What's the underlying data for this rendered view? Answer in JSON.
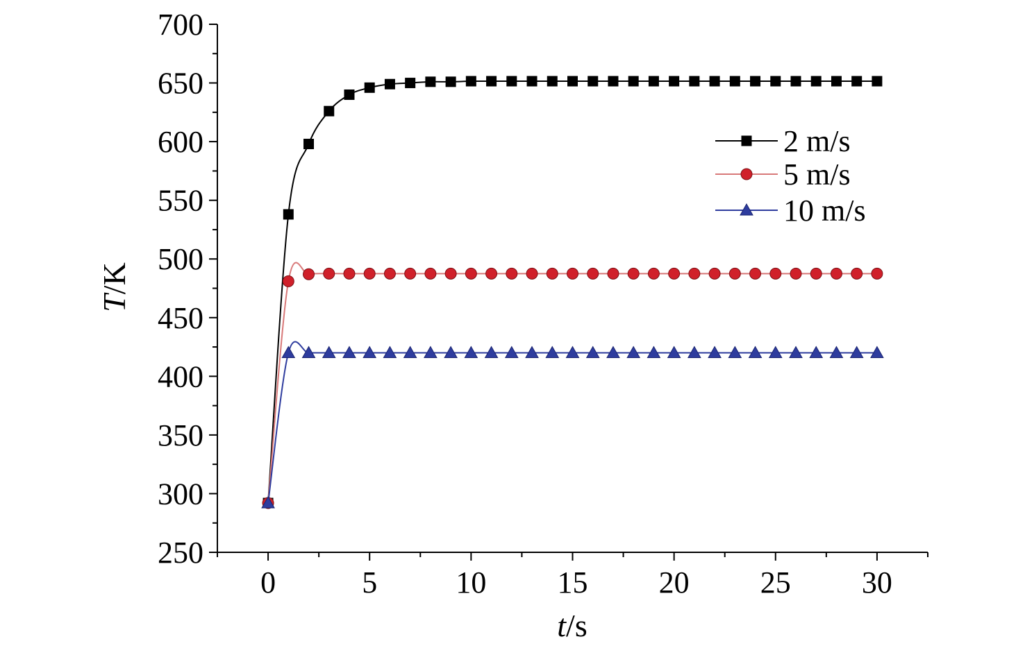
{
  "chart_data": {
    "type": "line",
    "title": "",
    "xlabel": {
      "var": "t",
      "unit": "/s"
    },
    "ylabel": {
      "var": "T",
      "unit": "/K"
    },
    "xlim": [
      -2.5,
      32.5
    ],
    "ylim": [
      250,
      700
    ],
    "xticks": [
      "0",
      "5",
      "10",
      "15",
      "20",
      "25",
      "30"
    ],
    "yticks": [
      "250",
      "300",
      "350",
      "400",
      "450",
      "500",
      "550",
      "600",
      "650",
      "700"
    ],
    "grid": false,
    "legend_position": "top-right",
    "x": [
      0,
      1,
      2,
      3,
      4,
      5,
      6,
      7,
      8,
      9,
      10,
      11,
      12,
      13,
      14,
      15,
      16,
      17,
      18,
      19,
      20,
      21,
      22,
      23,
      24,
      25,
      26,
      27,
      28,
      29,
      30
    ],
    "series": [
      {
        "name": "2 m/s",
        "marker": "square",
        "color": "#000000",
        "line_color": "#000000",
        "values": [
          292,
          538,
          598,
          626,
          640,
          646,
          649,
          650,
          651,
          651,
          651.5,
          651.5,
          651.5,
          651.5,
          651.5,
          651.5,
          651.5,
          651.5,
          651.5,
          651.5,
          651.5,
          651.5,
          651.5,
          651.5,
          651.5,
          651.5,
          651.5,
          651.5,
          651.5,
          651.5,
          651.5
        ]
      },
      {
        "name": "5 m/s",
        "marker": "circle",
        "color": "#d0202a",
        "line_color": "#d87878",
        "values": [
          292,
          481,
          487,
          487.5,
          487.5,
          487.5,
          487.5,
          487.5,
          487.5,
          487.5,
          487.5,
          487.5,
          487.5,
          487.5,
          487.5,
          487.5,
          487.5,
          487.5,
          487.5,
          487.5,
          487.5,
          487.5,
          487.5,
          487.5,
          487.5,
          487.5,
          487.5,
          487.5,
          487.5,
          487.5,
          487.5
        ]
      },
      {
        "name": "10 m/s",
        "marker": "triangle",
        "color": "#2e3c9e",
        "line_color": "#2e3c9e",
        "values": [
          292,
          420,
          420,
          420,
          420,
          420,
          420,
          420,
          420,
          420,
          420,
          420,
          420,
          420,
          420,
          420,
          420,
          420,
          420,
          420,
          420,
          420,
          420,
          420,
          420,
          420,
          420,
          420,
          420,
          420,
          420
        ]
      }
    ]
  }
}
